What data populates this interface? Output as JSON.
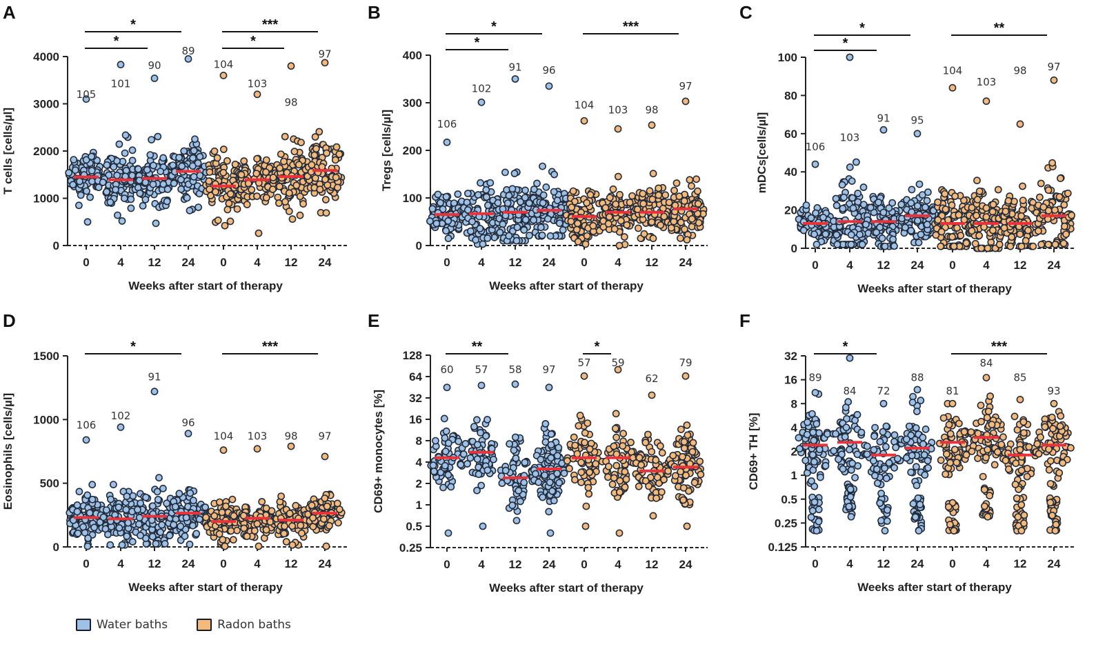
{
  "colors": {
    "water": "#9ec1e8",
    "radon": "#f5b97a",
    "median": "#e8333a",
    "outline": "#222b3a"
  },
  "legend": {
    "water_label": "Water baths",
    "radon_label": "Radon baths"
  },
  "chart_data": [
    {
      "letter": "A",
      "type": "scatter",
      "scale": "linear",
      "ylabel": "T cells [cells/µl]",
      "xlabel": "Weeks after start of therapy",
      "yticks": [
        0,
        1000,
        2000,
        3000,
        4000
      ],
      "ytick_labels": [
        "0",
        "1000",
        "2000",
        "3000",
        "4000"
      ],
      "ylim": [
        0,
        4000
      ],
      "categories": [
        "0",
        "4",
        "12",
        "24",
        "0",
        "4",
        "12",
        "24"
      ],
      "groups": [
        "water",
        "water",
        "water",
        "water",
        "radon",
        "radon",
        "radon",
        "radon"
      ],
      "n": [
        "105",
        "101",
        "90",
        "89",
        "104",
        "103",
        "98",
        "97"
      ],
      "n_values": [
        3200,
        3420,
        3810,
        4120,
        3830,
        3420,
        3030,
        4050
      ],
      "medians": [
        1450,
        1390,
        1420,
        1570,
        1260,
        1390,
        1460,
        1590
      ],
      "maxes": [
        3100,
        3830,
        3540,
        3950,
        3600,
        3200,
        3800,
        3870
      ],
      "mins": [
        500,
        520,
        470,
        740,
        420,
        260,
        560,
        690
      ],
      "sig": [
        {
          "from": 0,
          "to": 3,
          "level": 1,
          "label": "*"
        },
        {
          "from": 0,
          "to": 2,
          "level": 0,
          "label": "*"
        },
        {
          "from": 4,
          "to": 7,
          "level": 1,
          "label": "***"
        },
        {
          "from": 4,
          "to": 6,
          "level": 0,
          "label": "*"
        }
      ]
    },
    {
      "letter": "B",
      "type": "scatter",
      "scale": "linear",
      "ylabel": "Tregs [cells/µl]",
      "xlabel": "Weeks after start of therapy",
      "yticks": [
        0,
        100,
        200,
        300,
        400
      ],
      "ytick_labels": [
        "0",
        "100",
        "200",
        "300",
        "400"
      ],
      "ylim": [
        0,
        400
      ],
      "categories": [
        "0",
        "4",
        "12",
        "24",
        "0",
        "4",
        "12",
        "24"
      ],
      "groups": [
        "water",
        "water",
        "water",
        "water",
        "radon",
        "radon",
        "radon",
        "radon"
      ],
      "n": [
        "106",
        "102",
        "91",
        "96",
        "104",
        "103",
        "98",
        "97"
      ],
      "n_values": [
        255,
        330,
        375,
        368,
        295,
        285,
        285,
        335
      ],
      "medians": [
        65,
        67,
        70,
        74,
        61,
        70,
        70,
        77
      ],
      "maxes": [
        217,
        301,
        350,
        335,
        262,
        245,
        253,
        303
      ],
      "mins": [
        15,
        3,
        10,
        20,
        3,
        0,
        15,
        12
      ],
      "sig": [
        {
          "from": 0,
          "to": 3,
          "level": 1,
          "label": "*"
        },
        {
          "from": 0,
          "to": 2,
          "level": 0,
          "label": "*"
        },
        {
          "from": 4,
          "to": 7,
          "level": 1,
          "label": "***"
        }
      ]
    },
    {
      "letter": "C",
      "type": "scatter",
      "scale": "linear",
      "ylabel": "mDCs[cells/µl]",
      "xlabel": "Weeks after start of therapy",
      "yticks": [
        0,
        20,
        40,
        60,
        80,
        100
      ],
      "ytick_labels": [
        "0",
        "20",
        "40",
        "60",
        "80",
        "100"
      ],
      "ylim": [
        0,
        100
      ],
      "categories": [
        "0",
        "4",
        "12",
        "24",
        "0",
        "4",
        "12",
        "24"
      ],
      "groups": [
        "water",
        "water",
        "water",
        "water",
        "radon",
        "radon",
        "radon",
        "radon"
      ],
      "n": [
        "106",
        "103",
        "91",
        "95",
        "104",
        "103",
        "98",
        "97"
      ],
      "n_values": [
        53,
        58,
        68,
        67,
        93,
        87,
        93,
        95
      ],
      "medians": [
        13,
        14,
        14,
        17,
        13,
        13,
        13,
        17
      ],
      "maxes": [
        44,
        100,
        62,
        60,
        84,
        77,
        65,
        88
      ],
      "mins": [
        2,
        2,
        1,
        3,
        1,
        0,
        1,
        2
      ],
      "sig": [
        {
          "from": 0,
          "to": 3,
          "level": 1,
          "label": "*"
        },
        {
          "from": 0,
          "to": 2,
          "level": 0,
          "label": "*"
        },
        {
          "from": 4,
          "to": 7,
          "level": 1,
          "label": "**"
        }
      ]
    },
    {
      "letter": "D",
      "type": "scatter",
      "scale": "linear",
      "ylabel": "Eosinophils [cells/µl]",
      "xlabel": "Weeks after start of therapy",
      "yticks": [
        0,
        500,
        1000,
        1500
      ],
      "ytick_labels": [
        "0",
        "500",
        "1000",
        "1500"
      ],
      "ylim": [
        0,
        1500
      ],
      "categories": [
        "0",
        "4",
        "12",
        "24",
        "0",
        "4",
        "12",
        "24"
      ],
      "groups": [
        "water",
        "water",
        "water",
        "water",
        "radon",
        "radon",
        "radon",
        "radon"
      ],
      "n": [
        "106",
        "102",
        "91",
        "96",
        "104",
        "103",
        "98",
        "97"
      ],
      "n_values": [
        955,
        1030,
        1335,
        975,
        870,
        870,
        870,
        870
      ],
      "medians": [
        230,
        220,
        240,
        265,
        200,
        225,
        210,
        265
      ],
      "maxes": [
        840,
        940,
        1220,
        890,
        760,
        770,
        790,
        710
      ],
      "mins": [
        5,
        15,
        25,
        20,
        5,
        5,
        15,
        5
      ],
      "sig": [
        {
          "from": 0,
          "to": 3,
          "level": 1,
          "label": "*"
        },
        {
          "from": 4,
          "to": 7,
          "level": 1,
          "label": "***"
        }
      ]
    },
    {
      "letter": "E",
      "type": "scatter",
      "scale": "log2",
      "ylabel": "CD69+ monocytes [%]",
      "xlabel": "Weeks after start of therapy",
      "yticks": [
        0.25,
        0.5,
        1,
        2,
        4,
        8,
        16,
        32,
        64,
        128
      ],
      "ytick_labels": [
        "0.25",
        "0.5",
        "1",
        "2",
        "4",
        "8",
        "16",
        "32",
        "64",
        "128"
      ],
      "ylim": [
        0.25,
        128
      ],
      "categories": [
        "0",
        "4",
        "12",
        "24",
        "0",
        "4",
        "12",
        "24"
      ],
      "groups": [
        "water",
        "water",
        "water",
        "water",
        "radon",
        "radon",
        "radon",
        "radon"
      ],
      "n": [
        "60",
        "57",
        "58",
        "97",
        "57",
        "59",
        "62",
        "79"
      ],
      "n_values": [
        80,
        80,
        80,
        80,
        100,
        100,
        60,
        100
      ],
      "medians": [
        4.6,
        5.5,
        2.4,
        3.2,
        4.6,
        4.6,
        3.0,
        3.4
      ],
      "maxes": [
        45,
        48,
        50,
        45,
        65,
        80,
        35,
        65
      ],
      "mins": [
        0.4,
        0.5,
        0.6,
        0.4,
        0.5,
        0.4,
        0.7,
        0.5
      ],
      "sig": [
        {
          "from": 0,
          "to": 2,
          "level": 1,
          "label": "**"
        },
        {
          "from": 4,
          "to": 5,
          "level": 1,
          "label": "*"
        }
      ]
    },
    {
      "letter": "F",
      "type": "scatter",
      "scale": "log2",
      "ylabel": "CD69+ TH [%]",
      "xlabel": "Weeks after start of therapy",
      "yticks": [
        0.125,
        0.25,
        0.5,
        1,
        2,
        4,
        8,
        16,
        32
      ],
      "ytick_labels": [
        "0.125",
        "0.25",
        "0.5",
        "1",
        "2",
        "4",
        "8",
        "16",
        "32"
      ],
      "ylim": [
        0.125,
        32
      ],
      "categories": [
        "0",
        "4",
        "12",
        "24",
        "0",
        "4",
        "12",
        "24"
      ],
      "groups": [
        "water",
        "water",
        "water",
        "water",
        "radon",
        "radon",
        "radon",
        "radon"
      ],
      "n": [
        "89",
        "84",
        "72",
        "88",
        "81",
        "84",
        "85",
        "93"
      ],
      "n_values": [
        17,
        11.5,
        11.5,
        17,
        11.5,
        26,
        17,
        11.5
      ],
      "medians": [
        2.4,
        2.6,
        1.8,
        2.2,
        2.6,
        3.0,
        1.8,
        2.4
      ],
      "maxes": [
        11,
        30,
        8,
        12,
        8,
        17,
        9,
        8
      ],
      "mins": [
        0.2,
        0.3,
        0.2,
        0.2,
        0.2,
        0.3,
        0.2,
        0.2
      ],
      "bimodal": true,
      "sig": [
        {
          "from": 0,
          "to": 2,
          "level": 1,
          "label": "*"
        },
        {
          "from": 4,
          "to": 7,
          "level": 1,
          "label": "***"
        }
      ]
    }
  ]
}
